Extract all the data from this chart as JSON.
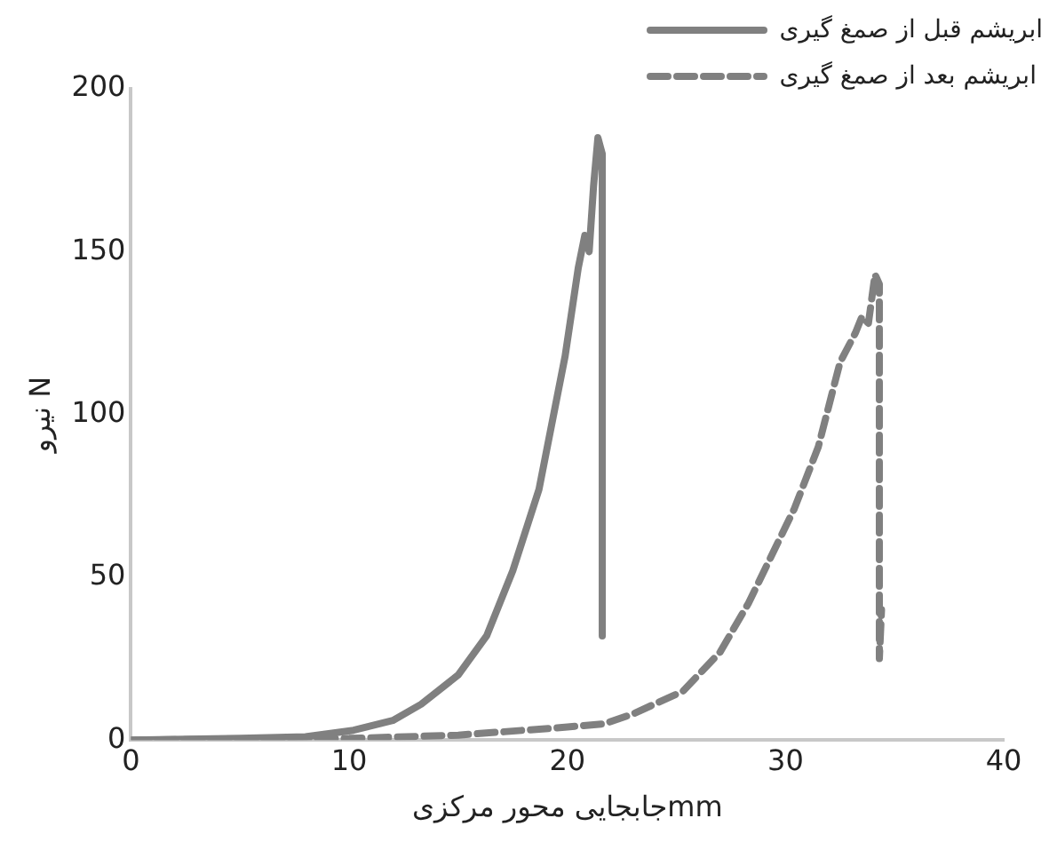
{
  "chart_data": {
    "type": "line",
    "xlabel": "جابجایی محور مرکزیmm",
    "ylabel": "نیرو N",
    "xlim": [
      0,
      40
    ],
    "xticks": [
      0,
      10,
      20,
      30,
      40
    ],
    "ylim": [
      0,
      200
    ],
    "yticks": [
      0,
      50,
      100,
      150,
      200
    ],
    "grid": false,
    "legend": "top right",
    "marker": "none",
    "series": [
      {
        "name": "ابریشم قبل از صمغ گیری",
        "color": "#808080",
        "line_style": "solid",
        "x": [
          0,
          5,
          8,
          10.2,
          12,
          13.3,
          15,
          16.3,
          17.5,
          18.7,
          19.9,
          20.5,
          20.8,
          21.0,
          21.2,
          21.4,
          21.6,
          21.6
        ],
        "values": [
          0,
          0.5,
          1,
          3,
          6,
          11,
          20,
          32,
          52,
          77,
          118,
          145,
          155,
          150,
          170,
          185,
          180,
          32
        ]
      },
      {
        "name": "ابریشم بعد از صمغ گیری",
        "color": "#808080",
        "line_style": "dashed",
        "x": [
          0,
          10,
          15,
          20,
          21.7,
          23,
          25.3,
          27,
          28.3,
          30.4,
          31.5,
          32.5,
          33.2,
          33.5,
          33.8,
          34.1,
          34.3,
          34.3,
          34.4
        ],
        "values": [
          0,
          0.5,
          1.5,
          4,
          5,
          8,
          15,
          27,
          42,
          71,
          90,
          116,
          125,
          130,
          128,
          143,
          140,
          25,
          40
        ]
      }
    ]
  }
}
